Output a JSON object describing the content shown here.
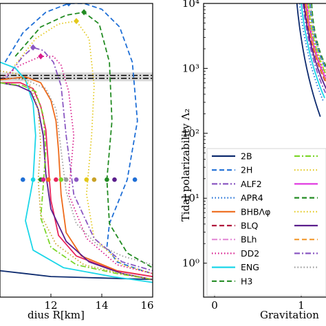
{
  "chart_data": [
    {
      "type": "line",
      "panel": "left",
      "xlabel": "Radius R[km]",
      "xlabel_visible": "dius R[km]",
      "xlim": [
        10,
        16
      ],
      "x_ticks": [
        12,
        14,
        16
      ],
      "x_tick_labels": [
        "12",
        "14",
        "16"
      ],
      "band": {
        "y_lower": 0.735,
        "y_upper": 0.765,
        "color": "#d9d9d9"
      },
      "reference_lines": [
        {
          "style": "dashdot",
          "y": 0.745,
          "color": "#000000"
        },
        {
          "style": "dashdot",
          "y": 0.755,
          "color": "#000000"
        }
      ],
      "series": [
        {
          "color": "#0c2a6e",
          "style": "solid",
          "x": [
            16,
            14,
            12,
            11,
            10
          ],
          "y": [
            0.06,
            0.065,
            0.07,
            0.08,
            0.09
          ]
        },
        {
          "color": "#1f6fd6",
          "style": "dashed",
          "marker": "diamond",
          "x": [
            10.2,
            10.9,
            11.8,
            12.7,
            13.3,
            14.0,
            14.7,
            15.2,
            15.4,
            15.0,
            14.3,
            14.2,
            14.6,
            15.6,
            16.0
          ],
          "y": [
            0.8,
            0.9,
            0.97,
            1.0,
            1.0,
            0.98,
            0.92,
            0.8,
            0.6,
            0.4,
            0.25,
            0.17,
            0.12,
            0.09,
            0.08
          ]
        },
        {
          "color": "#228b22",
          "style": "dashed",
          "marker": "diamond",
          "x": [
            10.6,
            11.6,
            12.6,
            13.3,
            13.9,
            14.3,
            14.4,
            14.2,
            14.3,
            15.0,
            16.0
          ],
          "y": [
            0.82,
            0.92,
            0.96,
            0.97,
            0.93,
            0.8,
            0.6,
            0.4,
            0.25,
            0.15,
            0.1
          ]
        },
        {
          "color": "#e3c81a",
          "style": "dotted",
          "marker": "diamond",
          "x": [
            10.5,
            11.4,
            12.3,
            13.0,
            13.5,
            13.7,
            13.6,
            13.4,
            13.7,
            14.8,
            16.0
          ],
          "y": [
            0.78,
            0.88,
            0.93,
            0.94,
            0.88,
            0.72,
            0.55,
            0.35,
            0.2,
            0.11,
            0.08
          ]
        },
        {
          "color": "#8a57c2",
          "style": "dashdot",
          "marker": "diamond",
          "x": [
            10.2,
            10.9,
            11.3,
            11.7,
            12.1,
            12.4,
            12.6,
            12.9,
            13.7,
            14.8,
            16.0
          ],
          "y": [
            0.74,
            0.82,
            0.85,
            0.84,
            0.8,
            0.72,
            0.55,
            0.35,
            0.2,
            0.12,
            0.09
          ]
        },
        {
          "color": "#d81b8c",
          "style": "dotted",
          "marker": "diamond",
          "x": [
            10.0,
            10.8,
            11.6,
            12.1,
            12.4,
            12.7,
            12.9,
            12.7,
            13.4,
            14.6,
            16.0
          ],
          "y": [
            0.74,
            0.79,
            0.82,
            0.82,
            0.79,
            0.7,
            0.55,
            0.35,
            0.2,
            0.11,
            0.08
          ]
        },
        {
          "color": "#ee6a1a",
          "style": "solid",
          "marker": "circle",
          "x": [
            10.0,
            11.0,
            11.6,
            12.0,
            12.2,
            12.3,
            12.4,
            12.6,
            13.2,
            14.6,
            16.0
          ],
          "y": [
            0.74,
            0.75,
            0.73,
            0.67,
            0.6,
            0.5,
            0.35,
            0.22,
            0.14,
            0.09,
            0.07
          ]
        },
        {
          "color": "#e8245b",
          "style": "solid",
          "marker": "circle",
          "x": [
            10.0,
            10.8,
            11.3,
            11.6,
            11.8,
            11.9,
            12.0,
            12.3,
            13.0,
            14.5,
            16.0
          ],
          "y": [
            0.73,
            0.73,
            0.71,
            0.65,
            0.57,
            0.45,
            0.33,
            0.21,
            0.14,
            0.09,
            0.07
          ]
        },
        {
          "color": "#1ad6e8",
          "style": "solid",
          "marker": "circle",
          "x": [
            10.0,
            10.6,
            11.0,
            11.3,
            11.4,
            11.3,
            11.0,
            11.3,
            12.5,
            14.4,
            16.0
          ],
          "y": [
            0.8,
            0.78,
            0.74,
            0.66,
            0.55,
            0.4,
            0.26,
            0.16,
            0.1,
            0.07,
            0.05
          ]
        },
        {
          "color": "#5a1e8c",
          "style": "solid",
          "marker": "circle",
          "x": [
            10.0,
            10.7,
            11.2,
            11.5,
            11.7,
            11.8,
            12.0,
            12.6,
            13.5,
            14.8,
            16.0
          ],
          "y": [
            0.73,
            0.72,
            0.7,
            0.64,
            0.55,
            0.42,
            0.3,
            0.19,
            0.12,
            0.08,
            0.06
          ]
        },
        {
          "color": "#7cd62a",
          "style": "dashdot",
          "marker": "circle",
          "x": [
            10.0,
            10.9,
            11.4,
            11.7,
            11.8,
            11.7,
            11.6,
            12.0,
            13.0,
            14.6,
            16.0
          ],
          "y": [
            0.73,
            0.72,
            0.7,
            0.62,
            0.5,
            0.38,
            0.27,
            0.17,
            0.11,
            0.08,
            0.06
          ]
        },
        {
          "color": "#c9a227",
          "style": "dotted",
          "marker": "circle",
          "x": [
            10.0,
            10.7,
            11.2,
            11.5,
            11.6,
            11.5,
            11.6,
            12.2,
            13.3,
            14.8,
            16.0
          ],
          "y": [
            0.77,
            0.76,
            0.72,
            0.64,
            0.52,
            0.4,
            0.28,
            0.18,
            0.11,
            0.08,
            0.06
          ]
        },
        {
          "color": "#9a9a9a",
          "style": "dotted",
          "marker": "circle",
          "x": [
            10.0,
            11.0,
            11.8,
            12.2,
            12.4,
            12.6,
            13.0,
            13.8,
            14.8,
            15.6,
            16.0
          ],
          "y": [
            0.75,
            0.74,
            0.71,
            0.64,
            0.5,
            0.36,
            0.25,
            0.18,
            0.14,
            0.12,
            0.11
          ]
        }
      ],
      "markers": {
        "circle_row_y": 0.4,
        "circle_row_x": [
          10.9,
          11.3,
          11.6,
          11.7,
          11.9,
          12.2,
          12.4,
          12.6,
          13.0,
          13.4,
          13.7,
          14.2,
          14.5,
          15.3
        ],
        "circle_row_colors": [
          "#1f6fd6",
          "#1ad6e8",
          "#228b22",
          "#d81b8c",
          "#ee6a1a",
          "#e8245b",
          "#7cd62a",
          "#9a9a9a",
          "#8a57c2",
          "#e3c81a",
          "#c9a227",
          "#228b22",
          "#5a1e8c",
          "#1f6fd6"
        ]
      }
    },
    {
      "type": "line",
      "panel": "right",
      "yscale": "log",
      "ylabel": "Tidal polarizability Λ₂",
      "xlabel_visible": "Gravitation",
      "ylim": [
        0.3,
        10000
      ],
      "y_ticks": [
        1,
        10,
        100,
        1000,
        10000
      ],
      "y_tick_labels": [
        "10⁰",
        "10¹",
        "10²",
        "10³",
        "10⁴"
      ],
      "x_ticks": [
        0,
        1
      ],
      "x_tick_labels": [
        "0",
        "1"
      ],
      "series": [
        {
          "color": "#0c2a6e",
          "style": "solid",
          "x": [
            0.95,
            1.22
          ],
          "y": [
            10000,
            180
          ]
        },
        {
          "color": "#1f6fd6",
          "style": "dashed",
          "x": [
            1.1,
            1.3
          ],
          "y": [
            10000,
            900
          ]
        },
        {
          "color": "#8a57c2",
          "style": "dashdot",
          "x": [
            1.02,
            1.28
          ],
          "y": [
            10000,
            420
          ]
        },
        {
          "color": "#1f6fd6",
          "style": "dotted",
          "x": [
            0.98,
            1.26
          ],
          "y": [
            10000,
            300
          ]
        },
        {
          "color": "#ee6a1a",
          "style": "solid",
          "x": [
            1.05,
            1.3
          ],
          "y": [
            10000,
            600
          ]
        },
        {
          "color": "#b0123c",
          "style": "dashed",
          "x": [
            1.04,
            1.3
          ],
          "y": [
            10000,
            550
          ]
        },
        {
          "color": "#e38ad6",
          "style": "dashdot",
          "x": [
            1.06,
            1.3
          ],
          "y": [
            10000,
            650
          ]
        },
        {
          "color": "#d81b8c",
          "style": "dotted",
          "x": [
            1.07,
            1.3
          ],
          "y": [
            10000,
            700
          ]
        },
        {
          "color": "#1ad6e8",
          "style": "solid",
          "x": [
            1.0,
            1.27
          ],
          "y": [
            10000,
            350
          ]
        },
        {
          "color": "#228b22",
          "style": "dashed",
          "x": [
            1.12,
            1.3
          ],
          "y": [
            10000,
            1000
          ]
        },
        {
          "color": "#7cd62a",
          "style": "dashdot",
          "x": [
            1.08,
            1.3
          ],
          "y": [
            10000,
            750
          ]
        },
        {
          "color": "#e3c81a",
          "style": "dotted",
          "x": [
            1.09,
            1.3
          ],
          "y": [
            10000,
            800
          ]
        },
        {
          "color": "#e03ae0",
          "style": "solid",
          "x": [
            1.06,
            1.3
          ],
          "y": [
            10000,
            620
          ]
        },
        {
          "color": "#5a1e8c",
          "style": "solid",
          "x": [
            1.03,
            1.29
          ],
          "y": [
            10000,
            480
          ]
        },
        {
          "color": "#f29b30",
          "style": "dashed",
          "x": [
            1.05,
            1.3
          ],
          "y": [
            10000,
            580
          ]
        },
        {
          "color": "#9a9a9a",
          "style": "dotted",
          "x": [
            1.11,
            1.3
          ],
          "y": [
            10000,
            950
          ]
        }
      ],
      "legend": {
        "placement": "lower-center",
        "entries": [
          {
            "label": "2B",
            "color": "#0c2a6e",
            "style": "solid"
          },
          {
            "label": "2H",
            "color": "#1f6fd6",
            "style": "dashed"
          },
          {
            "label": "ALF2",
            "color": "#8a57c2",
            "style": "dashdot"
          },
          {
            "label": "APR4",
            "color": "#1f6fd6",
            "style": "dotted"
          },
          {
            "label": "BHBΛφ",
            "color": "#ee6a1a",
            "style": "solid"
          },
          {
            "label": "BLQ",
            "color": "#b0123c",
            "style": "dashed"
          },
          {
            "label": "BLh",
            "color": "#e38ad6",
            "style": "dashdot"
          },
          {
            "label": "DD2",
            "color": "#d81b8c",
            "style": "dotted"
          },
          {
            "label": "ENG",
            "color": "#1ad6e8",
            "style": "solid"
          },
          {
            "label": "H3",
            "color": "#228b22",
            "style": "dashed"
          },
          {
            "label": "",
            "color": "#7cd62a",
            "style": "dashdot"
          },
          {
            "label": "",
            "color": "#e3c81a",
            "style": "dotted"
          },
          {
            "label": "",
            "color": "#e03ae0",
            "style": "solid"
          },
          {
            "label": "",
            "color": "#228b22",
            "style": "dashed"
          },
          {
            "label": "",
            "color": "#e3c81a",
            "style": "dotted"
          },
          {
            "label": "",
            "color": "#5a1e8c",
            "style": "solid"
          },
          {
            "label": "",
            "color": "#f29b30",
            "style": "dashed"
          },
          {
            "label": "",
            "color": "#8a57c2",
            "style": "dashdot"
          },
          {
            "label": "",
            "color": "#9a9a9a",
            "style": "dotted"
          }
        ]
      }
    }
  ]
}
